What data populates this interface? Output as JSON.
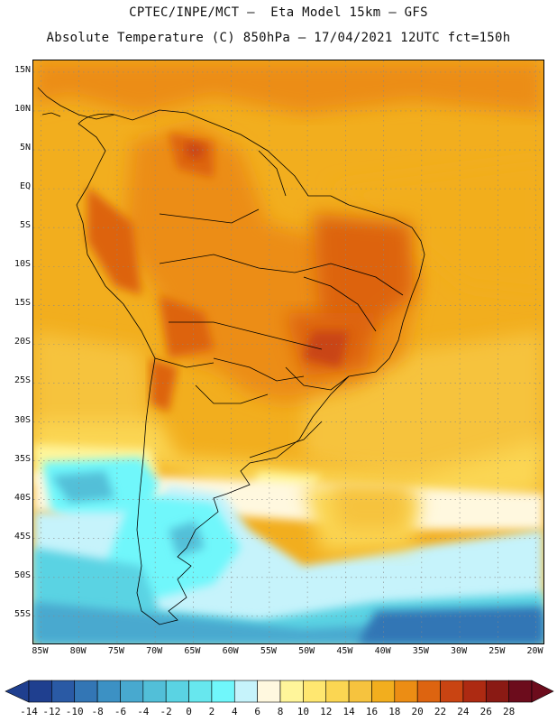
{
  "header": {
    "title_line1": "CPTEC/INPE/MCT –  Eta Model 15km – GFS",
    "title_line2": "Absolute Temperature (C) 850hPa – 17/04/2021 12UTC fct=150h"
  },
  "map": {
    "lat_labels": [
      "15N",
      "10N",
      "5N",
      "EQ",
      "5S",
      "10S",
      "15S",
      "20S",
      "25S",
      "30S",
      "35S",
      "40S",
      "45S",
      "50S",
      "55S"
    ],
    "lon_labels": [
      "85W",
      "80W",
      "75W",
      "70W",
      "65W",
      "60W",
      "55W",
      "50W",
      "45W",
      "40W",
      "35W",
      "30W",
      "25W",
      "20W"
    ],
    "lat_range": [
      -58.5,
      16.5
    ],
    "lon_range": [
      -86,
      -19
    ],
    "grid": true
  },
  "colorbar": {
    "labels": [
      "-14",
      "-12",
      "-10",
      "-8",
      "-6",
      "-4",
      "-2",
      "0",
      "2",
      "4",
      "6",
      "8",
      "10",
      "12",
      "14",
      "16",
      "18",
      "20",
      "22",
      "24",
      "26",
      "28"
    ],
    "colors": [
      "#1f3f8f",
      "#2a5aa5",
      "#3376b5",
      "#3c91c4",
      "#48a9cf",
      "#52bfd8",
      "#5ad3e3",
      "#67e7ee",
      "#70f7fb",
      "#c6f3fb",
      "#fff8df",
      "#fff59a",
      "#ffe770",
      "#fbd652",
      "#f6c33e",
      "#f2ae1e",
      "#ec8d14",
      "#dd6410",
      "#c94412",
      "#ad2a12",
      "#8a1a14",
      "#6c0c1c"
    ]
  }
}
